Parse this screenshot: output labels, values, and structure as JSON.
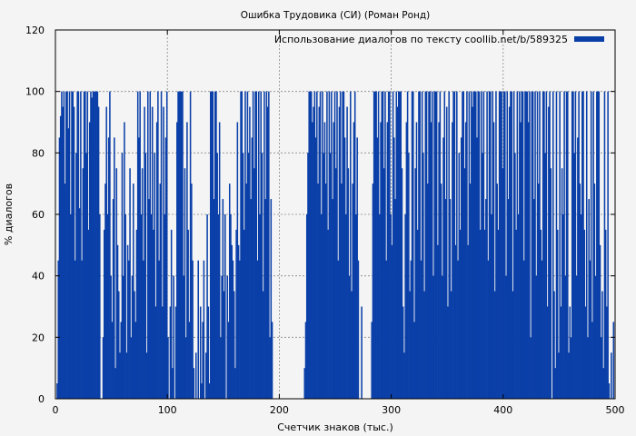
{
  "chart_data": {
    "type": "bar",
    "title": "Ошибка Трудовика (СИ) (Роман Ронд)",
    "xlabel": "Счетчик знаков (тыс.)",
    "ylabel": "% диалогов",
    "xlim": [
      0,
      500
    ],
    "ylim": [
      0,
      120
    ],
    "x_ticks": [
      0,
      100,
      200,
      300,
      400,
      500
    ],
    "y_ticks": [
      0,
      20,
      40,
      60,
      80,
      100,
      120
    ],
    "grid": true,
    "legend_position": "top-right",
    "bar_color": "#0a3fa8",
    "series": [
      {
        "name": "Использование диалогов по тексту coollib.net/b/589325",
        "bin_width": 1,
        "values": [
          0,
          5,
          45,
          85,
          92,
          100,
          95,
          100,
          70,
          100,
          100,
          88,
          100,
          60,
          100,
          100,
          95,
          45,
          80,
          100,
          100,
          62,
          100,
          45,
          75,
          100,
          100,
          80,
          100,
          55,
          90,
          100,
          98,
          100,
          100,
          100,
          100,
          100,
          95,
          60,
          0,
          0,
          20,
          55,
          70,
          95,
          60,
          85,
          100,
          40,
          25,
          65,
          85,
          10,
          75,
          50,
          35,
          15,
          25,
          80,
          40,
          90,
          60,
          15,
          50,
          45,
          75,
          20,
          40,
          70,
          35,
          25,
          55,
          100,
          85,
          100,
          60,
          75,
          45,
          95,
          80,
          15,
          100,
          65,
          100,
          60,
          95,
          55,
          80,
          30,
          90,
          100,
          45,
          70,
          100,
          30,
          95,
          60,
          85,
          100,
          20,
          0,
          30,
          55,
          10,
          40,
          0,
          30,
          90,
          100,
          100,
          100,
          100,
          100,
          40,
          75,
          20,
          90,
          55,
          25,
          100,
          70,
          45,
          10,
          0,
          15,
          0,
          45,
          0,
          30,
          5,
          25,
          45,
          0,
          15,
          60,
          30,
          5,
          100,
          100,
          100,
          65,
          100,
          100,
          80,
          60,
          90,
          20,
          40,
          65,
          35,
          60,
          0,
          40,
          25,
          70,
          60,
          50,
          45,
          35,
          10,
          55,
          90,
          50,
          45,
          100,
          100,
          80,
          55,
          100,
          70,
          100,
          80,
          95,
          65,
          85,
          100,
          75,
          100,
          100,
          45,
          100,
          60,
          100,
          80,
          35,
          100,
          65,
          100,
          95,
          100,
          20,
          65,
          25,
          0,
          0,
          0,
          0,
          0,
          0,
          0,
          0,
          0,
          0,
          0,
          0,
          0,
          0,
          0,
          0,
          0,
          0,
          0,
          0,
          0,
          0,
          0,
          0,
          0,
          0,
          0,
          0,
          10,
          25,
          60,
          80,
          100,
          100,
          100,
          90,
          95,
          100,
          85,
          100,
          70,
          95,
          100,
          60,
          100,
          80,
          90,
          70,
          100,
          55,
          100,
          80,
          100,
          65,
          90,
          100,
          75,
          100,
          45,
          95,
          100,
          70,
          100,
          100,
          85,
          60,
          95,
          75,
          40,
          100,
          35,
          70,
          90,
          100,
          60,
          85,
          45,
          0,
          0,
          30,
          0,
          0,
          0,
          0,
          0,
          0,
          0,
          0,
          25,
          70,
          100,
          100,
          100,
          85,
          100,
          60,
          90,
          100,
          100,
          75,
          100,
          45,
          90,
          100,
          100,
          60,
          50,
          100,
          85,
          65,
          100,
          95,
          100,
          100,
          100,
          75,
          30,
          15,
          60,
          90,
          100,
          80,
          35,
          45,
          100,
          100,
          25,
          75,
          90,
          55,
          100,
          100,
          45,
          100,
          80,
          35,
          100,
          100,
          70,
          100,
          100,
          90,
          100,
          40,
          100,
          100,
          100,
          50,
          90,
          100,
          70,
          40,
          85,
          100,
          65,
          95,
          30,
          100,
          65,
          35,
          90,
          100,
          100,
          50,
          100,
          45,
          80,
          55,
          85,
          100,
          100,
          75,
          90,
          100,
          50,
          100,
          70,
          100,
          95,
          100,
          100,
          100,
          85,
          100,
          100,
          55,
          100,
          80,
          100,
          55,
          65,
          100,
          45,
          100,
          100,
          60,
          100,
          90,
          35,
          100,
          70,
          55,
          100,
          100,
          100,
          75,
          100,
          100,
          40,
          100,
          65,
          95,
          100,
          100,
          35,
          100,
          80,
          55,
          100,
          60,
          100,
          90,
          100,
          100,
          45,
          100,
          100,
          100,
          90,
          100,
          20,
          100,
          100,
          65,
          100,
          40,
          100,
          70,
          100,
          55,
          45,
          100,
          100,
          80,
          100,
          30,
          95,
          100,
          75,
          0,
          100,
          35,
          10,
          100,
          55,
          15,
          100,
          30,
          75,
          60,
          100,
          40,
          100,
          100,
          15,
          30,
          20,
          100,
          100,
          80,
          100,
          40,
          85,
          100,
          70,
          60,
          100,
          100,
          55,
          30,
          100,
          20,
          65,
          45,
          100,
          25,
          100,
          70,
          40,
          100,
          100,
          100,
          50,
          20,
          35,
          10,
          100,
          55,
          30,
          100,
          5,
          0,
          15,
          0,
          25,
          0
        ]
      }
    ]
  }
}
